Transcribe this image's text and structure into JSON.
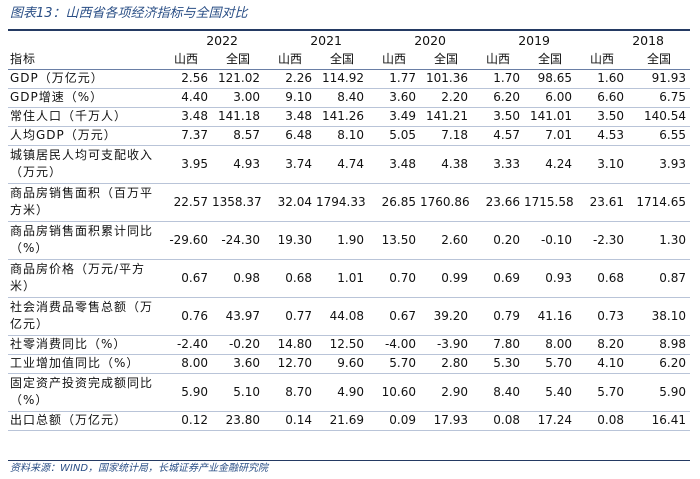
{
  "title": "图表13：山西省各项经济指标与全国对比",
  "years": [
    "2022",
    "2021",
    "2020",
    "2019",
    "2018"
  ],
  "header": {
    "indicator_label": "指标",
    "shanxi": "山西",
    "national": "全国"
  },
  "rows": [
    {
      "label": "GDP（万亿元）",
      "values": [
        "2.56",
        "121.02",
        "2.26",
        "114.92",
        "1.77",
        "101.36",
        "1.70",
        "98.65",
        "1.60",
        "91.93"
      ],
      "h": 19
    },
    {
      "label": "GDP增速（%）",
      "values": [
        "4.40",
        "3.00",
        "9.10",
        "8.40",
        "3.60",
        "2.20",
        "6.20",
        "6.00",
        "6.60",
        "6.75"
      ],
      "h": 19
    },
    {
      "label": "常住人口（千万人）",
      "values": [
        "3.48",
        "141.18",
        "3.48",
        "141.26",
        "3.49",
        "141.21",
        "3.50",
        "141.01",
        "3.50",
        "140.54"
      ],
      "h": 19
    },
    {
      "label": "人均GDP（万元）",
      "values": [
        "7.37",
        "8.57",
        "6.48",
        "8.10",
        "5.05",
        "7.18",
        "4.57",
        "7.01",
        "4.53",
        "6.55"
      ],
      "h": 19
    },
    {
      "label": "城镇居民人均可支配收入（万元）",
      "values": [
        "3.95",
        "4.93",
        "3.74",
        "4.74",
        "3.48",
        "4.38",
        "3.33",
        "4.24",
        "3.10",
        "3.93"
      ],
      "h": 38
    },
    {
      "label": "商品房销售面积（百万平方米）",
      "values": [
        "22.57",
        "1358.37",
        "32.04",
        "1794.33",
        "26.85",
        "1760.86",
        "23.66",
        "1715.58",
        "23.61",
        "1714.65"
      ],
      "h": 38
    },
    {
      "label": "商品房销售面积累计同比（%）",
      "values": [
        "-29.60",
        "-24.30",
        "19.30",
        "1.90",
        "13.50",
        "2.60",
        "0.20",
        "-0.10",
        "-2.30",
        "1.30"
      ],
      "h": 38
    },
    {
      "label": "商品房价格（万元/平方米）",
      "values": [
        "0.67",
        "0.98",
        "0.68",
        "1.01",
        "0.70",
        "0.99",
        "0.69",
        "0.93",
        "0.68",
        "0.87"
      ],
      "h": 38
    },
    {
      "label": "社会消费品零售总额（万亿元）",
      "values": [
        "0.76",
        "43.97",
        "0.77",
        "44.08",
        "0.67",
        "39.20",
        "0.79",
        "41.16",
        "0.73",
        "38.10"
      ],
      "h": 38
    },
    {
      "label": "社零消费同比（%）",
      "values": [
        "-2.40",
        "-0.20",
        "14.80",
        "12.50",
        "-4.00",
        "-3.90",
        "7.80",
        "8.00",
        "8.20",
        "8.98"
      ],
      "h": 19
    },
    {
      "label": "工业增加值同比（%）",
      "values": [
        "8.00",
        "3.60",
        "12.70",
        "9.60",
        "5.70",
        "2.80",
        "5.30",
        "5.70",
        "4.10",
        "6.20"
      ],
      "h": 19
    },
    {
      "label": "固定资产投资完成额同比（%）",
      "values": [
        "5.90",
        "5.10",
        "8.70",
        "4.90",
        "10.60",
        "2.90",
        "8.40",
        "5.40",
        "5.70",
        "5.90"
      ],
      "h": 38
    },
    {
      "label": "出口总额（万亿元）",
      "values": [
        "0.12",
        "23.80",
        "0.14",
        "21.69",
        "0.09",
        "17.93",
        "0.08",
        "17.24",
        "0.08",
        "16.41"
      ],
      "h": 19
    }
  ],
  "source": "资料来源：WIND，国家统计局，长城证券产业金融研究院"
}
